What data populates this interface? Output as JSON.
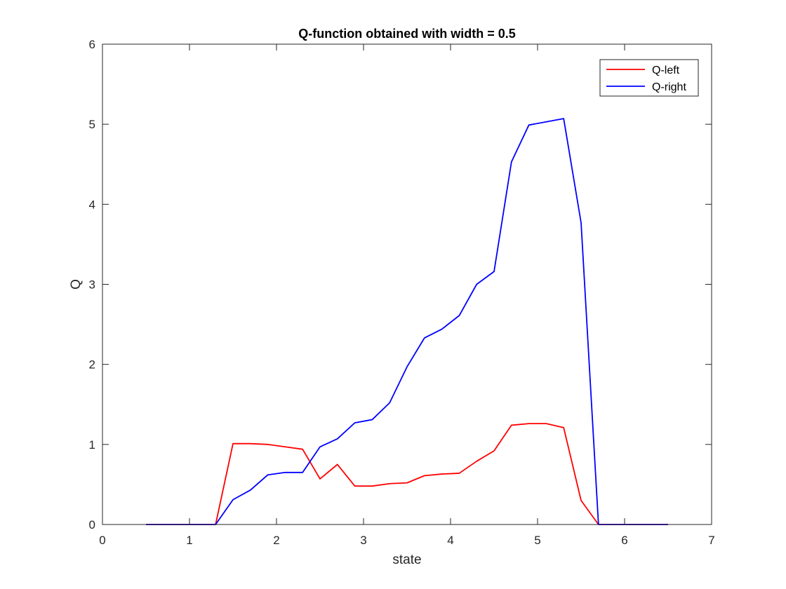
{
  "chart_data": {
    "type": "line",
    "title": "Q-function obtained with width = 0.5",
    "xlabel": "state",
    "ylabel": "Q",
    "xlim": [
      0,
      7
    ],
    "ylim": [
      0,
      6
    ],
    "xticks": [
      "0",
      "1",
      "2",
      "3",
      "4",
      "5",
      "6",
      "7"
    ],
    "yticks": [
      "0",
      "1",
      "2",
      "3",
      "4",
      "5",
      "6"
    ],
    "legend_position": "top-right",
    "x": [
      0.5,
      0.7,
      0.9,
      1.1,
      1.3,
      1.5,
      1.7,
      1.9,
      2.1,
      2.3,
      2.5,
      2.7,
      2.9,
      3.1,
      3.3,
      3.5,
      3.7,
      3.9,
      4.1,
      4.3,
      4.5,
      4.7,
      4.9,
      5.1,
      5.3,
      5.5,
      5.7,
      5.9,
      6.1,
      6.3,
      6.5
    ],
    "series": [
      {
        "name": "Q-left",
        "color": "#ff0000",
        "values": [
          0,
          0,
          0,
          0,
          0,
          1.01,
          1.01,
          1.0,
          0.97,
          0.94,
          0.57,
          0.75,
          0.48,
          0.48,
          0.51,
          0.52,
          0.61,
          0.63,
          0.64,
          0.79,
          0.92,
          1.24,
          1.26,
          1.26,
          1.21,
          0.3,
          0,
          0,
          0,
          0,
          0
        ]
      },
      {
        "name": "Q-right",
        "color": "#0000ff",
        "values": [
          0,
          0,
          0,
          0,
          0,
          0.31,
          0.43,
          0.62,
          0.65,
          0.65,
          0.97,
          1.07,
          1.27,
          1.31,
          1.52,
          1.97,
          2.33,
          2.44,
          2.61,
          3.0,
          3.16,
          4.53,
          4.99,
          5.03,
          5.07,
          3.77,
          0,
          0,
          0,
          0,
          0
        ]
      }
    ]
  }
}
